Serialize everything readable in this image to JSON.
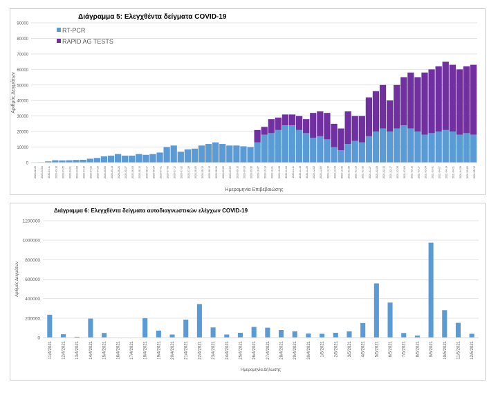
{
  "chart_data": [
    {
      "type": "bar",
      "stacked": true,
      "title": "Διάγραμμα 5: Ελεγχθέντα δείγματα COVID-19",
      "xlabel": "Ημερομηνία Επιβεβαιώσης",
      "ylabel": "Αριθμός Δειγμάτων",
      "ylim": [
        0,
        90000
      ],
      "yticks": [
        0,
        10000,
        20000,
        30000,
        40000,
        50000,
        60000,
        70000,
        80000,
        90000
      ],
      "grid": true,
      "legend": "top-left",
      "colors": {
        "RT-PCR": "#5b9bd5",
        "RAPID AG TESTS": "#7030a0"
      },
      "categories": [
        "2020-02-26",
        "2020-03-04",
        "2020-03-11",
        "2020-03-18",
        "2020-03-25",
        "2020-04-01",
        "2020-04-08",
        "2020-04-15",
        "2020-04-22",
        "2020-04-29",
        "2020-05-06",
        "2020-05-13",
        "2020-05-20",
        "2020-05-27",
        "2020-06-03",
        "2020-06-10",
        "2020-06-17",
        "2020-06-24",
        "2020-07-01",
        "2020-07-08",
        "2020-07-15",
        "2020-07-22",
        "2020-07-29",
        "2020-08-05",
        "2020-08-12",
        "2020-08-19",
        "2020-08-26",
        "2020-09-02",
        "2020-09-09",
        "2020-09-16",
        "2020-09-23",
        "2020-09-30",
        "2020-10-07",
        "2020-10-14",
        "2020-10-21",
        "2020-10-28",
        "2020-11-04",
        "2020-11-11",
        "2020-11-18",
        "2020-11-25",
        "2020-12-02",
        "2020-12-09",
        "2020-12-16",
        "2020-12-23",
        "2020-12-30",
        "2021-01-06",
        "2021-01-13",
        "2021-01-20",
        "2021-01-27",
        "2021-02-03",
        "2021-02-10",
        "2021-02-17",
        "2021-02-24",
        "2021-03-03",
        "2021-03-10",
        "2021-03-17",
        "2021-03-24",
        "2021-03-31",
        "2021-04-07",
        "2021-04-14",
        "2021-04-21",
        "2021-04-28",
        "2021-05-05",
        "2021-05-12"
      ],
      "series": [
        {
          "name": "RT-PCR",
          "values": [
            200,
            300,
            800,
            1500,
            1400,
            1500,
            1700,
            1800,
            2500,
            3000,
            4000,
            4500,
            5500,
            4500,
            4500,
            5500,
            5000,
            5500,
            6500,
            10000,
            11000,
            7000,
            8500,
            9000,
            11000,
            12000,
            13000,
            12000,
            11000,
            11000,
            10500,
            10000,
            13000,
            18000,
            19000,
            21000,
            24000,
            24000,
            21000,
            19000,
            16000,
            17000,
            15000,
            10000,
            8000,
            12000,
            14000,
            13000,
            17000,
            20000,
            22000,
            20000,
            22000,
            24000,
            22000,
            20000,
            18000,
            19000,
            20000,
            21000,
            20000,
            18000,
            19000,
            18000
          ]
        },
        {
          "name": "RAPID AG TESTS",
          "values": [
            0,
            0,
            0,
            0,
            0,
            0,
            0,
            0,
            0,
            0,
            0,
            0,
            0,
            0,
            0,
            0,
            0,
            0,
            0,
            0,
            0,
            0,
            0,
            0,
            0,
            0,
            0,
            0,
            0,
            0,
            0,
            0,
            8000,
            5000,
            9000,
            8000,
            7000,
            7000,
            9000,
            9000,
            16000,
            16000,
            17000,
            15000,
            14000,
            21000,
            16000,
            17000,
            25000,
            26000,
            28000,
            20000,
            28000,
            31000,
            36000,
            35000,
            40000,
            41000,
            42000,
            44000,
            43000,
            42000,
            43000,
            45000
          ]
        }
      ]
    },
    {
      "type": "bar",
      "title": "Διάγραμμα 6: Ελεγχθέντα δείγματα αυτοδιαγνωστικών ελέγχων COVID-19",
      "xlabel": "Ημερομηνία Δήλωσης",
      "ylabel": "Αριθμός Δειγμάτων",
      "ylim": [
        0,
        1200000
      ],
      "yticks": [
        0,
        200000,
        400000,
        600000,
        800000,
        1000000,
        1200000
      ],
      "grid": true,
      "color": "#5b9bd5",
      "categories": [
        "11/4/2021",
        "12/4/2021",
        "13/4/2021",
        "14/4/2021",
        "15/4/2021",
        "16/4/2021",
        "17/4/2021",
        "18/4/2021",
        "19/4/2021",
        "20/4/2021",
        "21/4/2021",
        "22/4/2021",
        "23/4/2021",
        "24/4/2021",
        "25/4/2021",
        "26/4/2021",
        "27/4/2021",
        "28/4/2021",
        "29/4/2021",
        "30/4/2021",
        "1/5/2021",
        "2/5/2021",
        "3/5/2021",
        "4/5/2021",
        "5/5/2021",
        "6/5/2021",
        "7/5/2021",
        "8/5/2021",
        "9/5/2021",
        "10/5/2021",
        "11/5/2021",
        "12/5/2021"
      ],
      "values": [
        235000,
        35000,
        8000,
        195000,
        48000,
        0,
        0,
        200000,
        72000,
        32000,
        185000,
        345000,
        105000,
        32000,
        50000,
        110000,
        102000,
        78000,
        65000,
        42000,
        40000,
        50000,
        65000,
        150000,
        557000,
        360000,
        48000,
        22000,
        975000,
        282000,
        152000,
        40000
      ]
    }
  ]
}
